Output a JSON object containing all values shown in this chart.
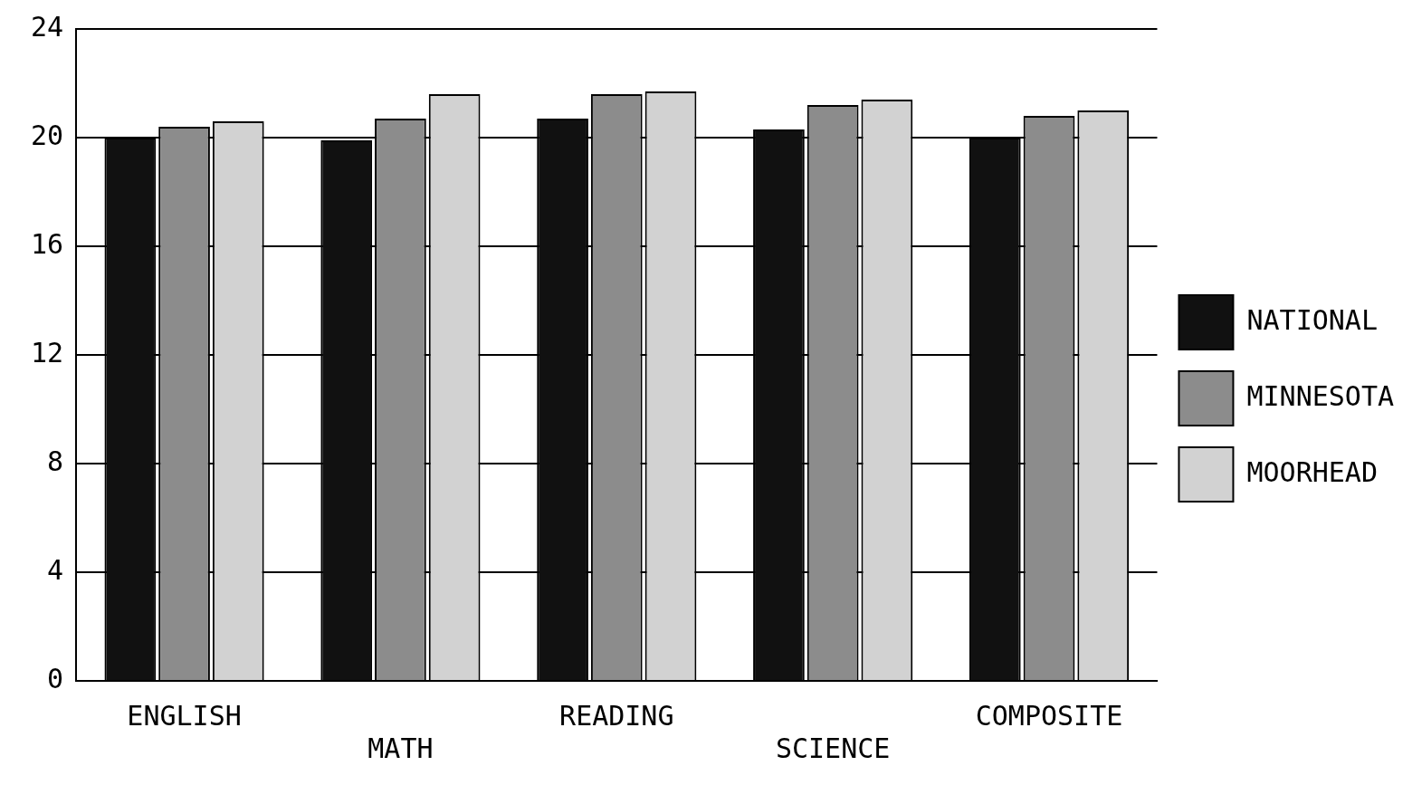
{
  "chart_data": {
    "type": "bar",
    "categories": [
      "ENGLISH",
      "MATH",
      "READING",
      "SCIENCE",
      "COMPOSITE"
    ],
    "series": [
      {
        "name": "NATIONAL",
        "color": "#111111",
        "values": [
          20.0,
          19.9,
          20.7,
          20.3,
          20.0
        ]
      },
      {
        "name": "MINNESOTA",
        "color": "#8c8c8c",
        "values": [
          20.4,
          20.7,
          21.6,
          21.2,
          20.8
        ]
      },
      {
        "name": "MOORHEAD",
        "color": "#d2d2d2",
        "values": [
          20.6,
          21.6,
          21.7,
          21.4,
          21.0
        ]
      }
    ],
    "ylim": [
      0,
      24
    ],
    "yticks": [
      0,
      4,
      8,
      12,
      16,
      20,
      24
    ],
    "grid": "y",
    "legend": "right"
  }
}
